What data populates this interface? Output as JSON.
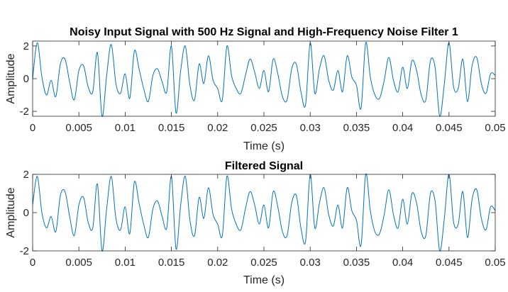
{
  "chart_data": [
    {
      "type": "line",
      "title": "Noisy Input Signal with 500 Hz Signal and High-Frequency Noise Filter 1",
      "xlabel": "Time (s)",
      "ylabel": "Amplitude",
      "xlim": [
        0,
        0.05
      ],
      "ylim": [
        -2.3,
        2.3
      ],
      "xticks": [
        0,
        0.005,
        0.01,
        0.015,
        0.02,
        0.025,
        0.03,
        0.035,
        0.04,
        0.045,
        0.05
      ],
      "xtick_labels": [
        "0",
        "0.005",
        "0.01",
        "0.015",
        "0.02",
        "0.025",
        "0.03",
        "0.035",
        "0.04",
        "0.045",
        "0.05"
      ],
      "yticks": [
        -2,
        0,
        2
      ],
      "ytick_labels": [
        "-2",
        "0",
        "2"
      ],
      "grid": false,
      "color": "#0072BD",
      "series": [
        {
          "x": [
            0,
            0.0005,
            0.001,
            0.0015,
            0.002,
            0.0025,
            0.003,
            0.0035,
            0.004,
            0.0045,
            0.005,
            0.0055,
            0.006,
            0.0065,
            0.007,
            0.0075,
            0.008,
            0.0085,
            0.009,
            0.0095,
            0.01,
            0.0105,
            0.011,
            0.0115,
            0.012,
            0.0125,
            0.013,
            0.0135,
            0.014,
            0.0145,
            0.015,
            0.0155,
            0.016,
            0.0165,
            0.017,
            0.0175,
            0.018,
            0.0185,
            0.019,
            0.0195,
            0.02,
            0.0205,
            0.021,
            0.0215,
            0.022,
            0.0225,
            0.023,
            0.0235,
            0.024,
            0.0245,
            0.025,
            0.0255,
            0.026,
            0.0265,
            0.027,
            0.0275,
            0.028,
            0.0285,
            0.029,
            0.0295,
            0.03,
            0.0305,
            0.031,
            0.0315,
            0.032,
            0.0325,
            0.033,
            0.0335,
            0.034,
            0.0345,
            0.035,
            0.0355,
            0.036,
            0.0365,
            0.037,
            0.0375,
            0.038,
            0.0385,
            0.039,
            0.0395,
            0.04,
            0.0405,
            0.041,
            0.0415,
            0.042,
            0.0425,
            0.043,
            0.0435,
            0.044,
            0.0445,
            0.045,
            0.0455,
            0.046,
            0.0465,
            0.047,
            0.0475,
            0.048,
            0.0485,
            0.049,
            0.0495,
            0.05
          ],
          "y": [
            0.0,
            2.2,
            0.1,
            -1.0,
            -0.1,
            -1.1,
            0.9,
            1.2,
            -0.2,
            -1.3,
            0.5,
            0.8,
            -0.5,
            -0.8,
            1.6,
            -2.3,
            0.2,
            2.1,
            -0.3,
            -0.9,
            0.3,
            -1.2,
            1.7,
            0.6,
            -0.6,
            -1.4,
            0.2,
            0.6,
            -0.2,
            -0.8,
            2.0,
            -2.1,
            0.5,
            2.0,
            -0.4,
            -1.3,
            0.9,
            -0.3,
            1.4,
            -0.1,
            -0.6,
            -1.3,
            2.0,
            0.2,
            -0.6,
            -0.9,
            0.2,
            1.2,
            0.4,
            -0.6,
            0.5,
            -0.8,
            1.2,
            0.3,
            -1.1,
            -1.3,
            0.6,
            0.9,
            -0.8,
            -1.6,
            2.2,
            -0.9,
            0.6,
            1.4,
            -0.1,
            -0.7,
            0.5,
            -0.8,
            1.4,
            0.1,
            -0.4,
            -1.8,
            2.2,
            0.1,
            -1.0,
            -1.2,
            -0.1,
            1.3,
            -0.1,
            -0.8,
            0.7,
            -0.6,
            1.1,
            0.5,
            -1.0,
            -1.3,
            1.1,
            0.7,
            -2.3,
            -0.3,
            2.2,
            -0.5,
            -0.6,
            1.2,
            -1.4,
            0.8,
            1.3,
            -0.3,
            -0.9,
            0.3,
            0.2
          ]
        }
      ]
    },
    {
      "type": "line",
      "title": "Filtered Signal",
      "xlabel": "Time (s)",
      "ylabel": "Amplitude",
      "xlim": [
        0,
        0.05
      ],
      "ylim": [
        -2,
        2
      ],
      "xticks": [
        0,
        0.005,
        0.01,
        0.015,
        0.02,
        0.025,
        0.03,
        0.035,
        0.04,
        0.045,
        0.05
      ],
      "xtick_labels": [
        "0",
        "0.005",
        "0.01",
        "0.015",
        "0.02",
        "0.025",
        "0.03",
        "0.035",
        "0.04",
        "0.045",
        "0.05"
      ],
      "yticks": [
        -2,
        0,
        2
      ],
      "ytick_labels": [
        "-2",
        "0",
        "2"
      ],
      "grid": false,
      "color": "#0072BD",
      "series": [
        {
          "x": [
            0,
            0.0005,
            0.001,
            0.0015,
            0.002,
            0.0025,
            0.003,
            0.0035,
            0.004,
            0.0045,
            0.005,
            0.0055,
            0.006,
            0.0065,
            0.007,
            0.0075,
            0.008,
            0.0085,
            0.009,
            0.0095,
            0.01,
            0.0105,
            0.011,
            0.0115,
            0.012,
            0.0125,
            0.013,
            0.0135,
            0.014,
            0.0145,
            0.015,
            0.0155,
            0.016,
            0.0165,
            0.017,
            0.0175,
            0.018,
            0.0185,
            0.019,
            0.0195,
            0.02,
            0.0205,
            0.021,
            0.0215,
            0.022,
            0.0225,
            0.023,
            0.0235,
            0.024,
            0.0245,
            0.025,
            0.0255,
            0.026,
            0.0265,
            0.027,
            0.0275,
            0.028,
            0.0285,
            0.029,
            0.0295,
            0.03,
            0.0305,
            0.031,
            0.0315,
            0.032,
            0.0325,
            0.033,
            0.0335,
            0.034,
            0.0345,
            0.035,
            0.0355,
            0.036,
            0.0365,
            0.037,
            0.0375,
            0.038,
            0.0385,
            0.039,
            0.0395,
            0.04,
            0.0405,
            0.041,
            0.0415,
            0.042,
            0.0425,
            0.043,
            0.0435,
            0.044,
            0.0445,
            0.045,
            0.0455,
            0.046,
            0.0465,
            0.047,
            0.0475,
            0.048,
            0.0485,
            0.049,
            0.0495,
            0.05
          ],
          "y": [
            0.4,
            1.9,
            0.0,
            -0.8,
            -0.2,
            -1.0,
            0.9,
            1.1,
            -0.2,
            -1.2,
            0.4,
            0.8,
            -0.5,
            -0.8,
            1.5,
            -2.0,
            0.2,
            1.9,
            -0.3,
            -0.9,
            0.3,
            -1.1,
            1.6,
            0.5,
            -0.6,
            -1.3,
            0.2,
            0.6,
            -0.2,
            -0.8,
            1.9,
            -1.9,
            0.4,
            1.9,
            -0.4,
            -1.2,
            0.8,
            -0.3,
            1.3,
            -0.1,
            -0.6,
            -1.2,
            1.9,
            0.2,
            -0.6,
            -0.9,
            0.2,
            1.1,
            0.4,
            -0.6,
            0.4,
            -0.8,
            1.1,
            0.3,
            -1.0,
            -1.2,
            0.5,
            0.9,
            -0.8,
            -1.5,
            2.0,
            -0.8,
            0.5,
            1.3,
            -0.1,
            -0.7,
            0.4,
            -0.8,
            1.3,
            0.1,
            -0.4,
            -1.7,
            2.0,
            0.1,
            -1.0,
            -1.1,
            -0.1,
            1.2,
            -0.1,
            -0.8,
            0.7,
            -0.6,
            1.0,
            0.5,
            -1.0,
            -1.2,
            1.0,
            0.6,
            -2.0,
            -0.3,
            2.0,
            -0.5,
            -0.6,
            1.1,
            -1.3,
            0.7,
            1.2,
            -0.3,
            -0.9,
            0.3,
            0.1
          ]
        }
      ]
    }
  ]
}
